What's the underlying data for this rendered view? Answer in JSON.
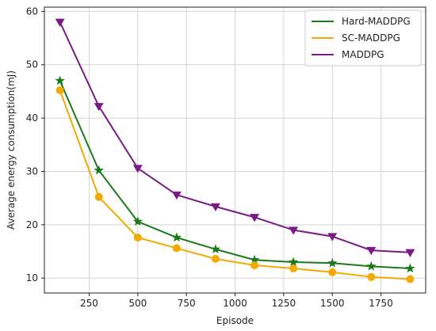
{
  "chart_data": {
    "type": "line",
    "title": "",
    "xlabel": "Episode",
    "ylabel": "Average energy consumption(mJ)",
    "xlim": [
      20,
      1980
    ],
    "ylim": [
      7.2,
      60.8
    ],
    "xticks": [
      250,
      500,
      750,
      1000,
      1250,
      1500,
      1750
    ],
    "xtick_labels": [
      "250",
      "500",
      "750",
      "1000",
      "1250",
      "1500",
      "1750"
    ],
    "yticks": [
      10,
      20,
      30,
      40,
      50,
      60
    ],
    "ytick_labels": [
      "10",
      "20",
      "30",
      "40",
      "50",
      "60"
    ],
    "grid": true,
    "legend_position": "top-right",
    "x": [
      100,
      300,
      500,
      700,
      900,
      1100,
      1300,
      1500,
      1700,
      1900
    ],
    "series": [
      {
        "name": "Hard-MADDPG",
        "color": "#1a7a1a",
        "marker": "star",
        "values": [
          47.0,
          30.2,
          20.6,
          17.6,
          15.4,
          13.4,
          13.0,
          12.8,
          12.2,
          11.8
        ]
      },
      {
        "name": "SC-MADDPG",
        "color": "#f2a900",
        "marker": "circle",
        "values": [
          45.2,
          25.2,
          17.6,
          15.6,
          13.6,
          12.4,
          11.8,
          11.1,
          10.2,
          9.8
        ]
      },
      {
        "name": "MADDPG",
        "color": "#7b1a86",
        "marker": "triangle-down",
        "values": [
          58.0,
          42.2,
          30.6,
          25.6,
          23.4,
          21.4,
          19.0,
          17.8,
          15.2,
          14.8
        ]
      }
    ]
  }
}
